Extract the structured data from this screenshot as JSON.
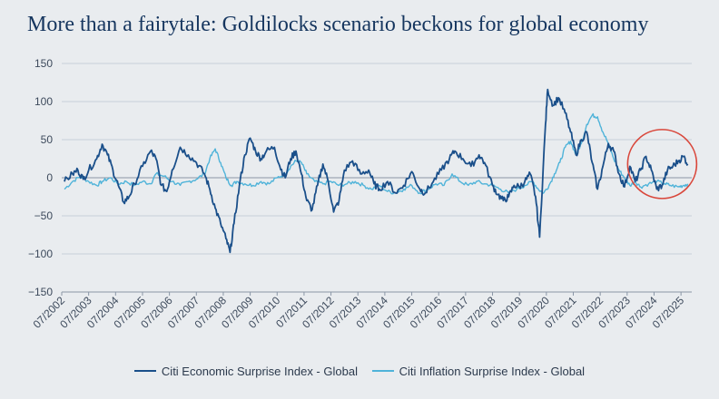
{
  "chart_data": {
    "type": "line",
    "title": "More than a fairytale: Goldilocks scenario beckons for global economy",
    "xlabel": "",
    "ylabel": "",
    "ylim": [
      -150,
      150
    ],
    "yticks": [
      "150",
      "100",
      "50",
      "0",
      "−50",
      "−100",
      "−150"
    ],
    "ytick_values": [
      150,
      100,
      50,
      0,
      -50,
      -100,
      -150
    ],
    "xticks": [
      "07/2002",
      "07/2003",
      "07/2004",
      "07/2005",
      "07/2006",
      "07/2007",
      "07/2008",
      "07/2009",
      "07/2010",
      "07/2011",
      "07/2012",
      "07/2013",
      "07/2014",
      "07/2015",
      "07/2016",
      "07/2017",
      "07/2018",
      "07/2019",
      "07/2020",
      "07/2021",
      "07/2022",
      "07/2023",
      "07/2024",
      "07/2025"
    ],
    "xrange": [
      2002.5,
      2025.9
    ],
    "grid": true,
    "legend_position": "bottom",
    "series": [
      {
        "name": "Citi Economic Surprise Index - Global",
        "color": "#1a4f8a",
        "points": [
          [
            2002.6,
            -5
          ],
          [
            2002.9,
            5
          ],
          [
            2003.1,
            10
          ],
          [
            2003.3,
            -2
          ],
          [
            2003.5,
            10
          ],
          [
            2003.8,
            25
          ],
          [
            2004.0,
            44
          ],
          [
            2004.2,
            30
          ],
          [
            2004.4,
            10
          ],
          [
            2004.6,
            -10
          ],
          [
            2004.8,
            -32
          ],
          [
            2005.0,
            -25
          ],
          [
            2005.2,
            -8
          ],
          [
            2005.5,
            15
          ],
          [
            2005.8,
            35
          ],
          [
            2006.0,
            25
          ],
          [
            2006.2,
            -10
          ],
          [
            2006.4,
            -18
          ],
          [
            2006.6,
            10
          ],
          [
            2006.9,
            40
          ],
          [
            2007.2,
            30
          ],
          [
            2007.5,
            20
          ],
          [
            2007.8,
            5
          ],
          [
            2008.0,
            -15
          ],
          [
            2008.2,
            -40
          ],
          [
            2008.4,
            -60
          ],
          [
            2008.6,
            -80
          ],
          [
            2008.75,
            -98
          ],
          [
            2008.9,
            -60
          ],
          [
            2009.1,
            -10
          ],
          [
            2009.3,
            30
          ],
          [
            2009.5,
            52
          ],
          [
            2009.7,
            35
          ],
          [
            2009.9,
            25
          ],
          [
            2010.1,
            35
          ],
          [
            2010.4,
            40
          ],
          [
            2010.6,
            15
          ],
          [
            2010.8,
            0
          ],
          [
            2011.0,
            25
          ],
          [
            2011.2,
            35
          ],
          [
            2011.4,
            5
          ],
          [
            2011.6,
            -30
          ],
          [
            2011.8,
            -42
          ],
          [
            2012.0,
            -10
          ],
          [
            2012.2,
            18
          ],
          [
            2012.4,
            -5
          ],
          [
            2012.6,
            -45
          ],
          [
            2012.8,
            -30
          ],
          [
            2013.0,
            10
          ],
          [
            2013.3,
            22
          ],
          [
            2013.6,
            5
          ],
          [
            2013.9,
            10
          ],
          [
            2014.1,
            -8
          ],
          [
            2014.3,
            -15
          ],
          [
            2014.6,
            -5
          ],
          [
            2014.9,
            -20
          ],
          [
            2015.2,
            -10
          ],
          [
            2015.5,
            8
          ],
          [
            2015.8,
            -15
          ],
          [
            2016.0,
            -20
          ],
          [
            2016.3,
            -5
          ],
          [
            2016.6,
            10
          ],
          [
            2016.9,
            25
          ],
          [
            2017.1,
            35
          ],
          [
            2017.4,
            25
          ],
          [
            2017.7,
            15
          ],
          [
            2018.0,
            30
          ],
          [
            2018.2,
            20
          ],
          [
            2018.5,
            -10
          ],
          [
            2018.7,
            -22
          ],
          [
            2018.9,
            -30
          ],
          [
            2019.1,
            -25
          ],
          [
            2019.3,
            -10
          ],
          [
            2019.5,
            -12
          ],
          [
            2019.7,
            -5
          ],
          [
            2019.9,
            5
          ],
          [
            2020.1,
            -25
          ],
          [
            2020.25,
            -78
          ],
          [
            2020.45,
            60
          ],
          [
            2020.55,
            116
          ],
          [
            2020.75,
            95
          ],
          [
            2020.95,
            105
          ],
          [
            2021.2,
            85
          ],
          [
            2021.4,
            60
          ],
          [
            2021.6,
            30
          ],
          [
            2021.8,
            50
          ],
          [
            2022.0,
            60
          ],
          [
            2022.2,
            20
          ],
          [
            2022.4,
            -15
          ],
          [
            2022.6,
            15
          ],
          [
            2022.8,
            45
          ],
          [
            2023.0,
            35
          ],
          [
            2023.2,
            5
          ],
          [
            2023.4,
            -12
          ],
          [
            2023.6,
            15
          ],
          [
            2023.8,
            -5
          ],
          [
            2024.0,
            10
          ],
          [
            2024.2,
            28
          ],
          [
            2024.4,
            10
          ],
          [
            2024.6,
            -15
          ],
          [
            2024.8,
            -10
          ],
          [
            2025.0,
            10
          ],
          [
            2025.2,
            15
          ],
          [
            2025.4,
            22
          ],
          [
            2025.6,
            28
          ],
          [
            2025.75,
            18
          ]
        ]
      },
      {
        "name": "Citi Inflation Surprise Index - Global",
        "color": "#4fb3d9",
        "points": [
          [
            2002.6,
            -15
          ],
          [
            2002.9,
            -5
          ],
          [
            2003.2,
            2
          ],
          [
            2003.5,
            -5
          ],
          [
            2003.8,
            -10
          ],
          [
            2004.0,
            -5
          ],
          [
            2004.3,
            0
          ],
          [
            2004.6,
            -8
          ],
          [
            2004.9,
            -5
          ],
          [
            2005.2,
            -10
          ],
          [
            2005.5,
            -5
          ],
          [
            2005.8,
            -8
          ],
          [
            2006.0,
            5
          ],
          [
            2006.3,
            2
          ],
          [
            2006.6,
            -5
          ],
          [
            2006.9,
            -10
          ],
          [
            2007.2,
            -5
          ],
          [
            2007.5,
            -2
          ],
          [
            2007.8,
            5
          ],
          [
            2008.0,
            25
          ],
          [
            2008.2,
            38
          ],
          [
            2008.4,
            20
          ],
          [
            2008.6,
            0
          ],
          [
            2008.8,
            -10
          ],
          [
            2009.0,
            -5
          ],
          [
            2009.3,
            -8
          ],
          [
            2009.6,
            -10
          ],
          [
            2009.9,
            -5
          ],
          [
            2010.2,
            -8
          ],
          [
            2010.5,
            0
          ],
          [
            2010.8,
            5
          ],
          [
            2011.0,
            15
          ],
          [
            2011.2,
            22
          ],
          [
            2011.4,
            20
          ],
          [
            2011.6,
            5
          ],
          [
            2011.9,
            -5
          ],
          [
            2012.2,
            -8
          ],
          [
            2012.5,
            -5
          ],
          [
            2012.8,
            -10
          ],
          [
            2013.1,
            -8
          ],
          [
            2013.4,
            -5
          ],
          [
            2013.7,
            -10
          ],
          [
            2014.0,
            -15
          ],
          [
            2014.3,
            -10
          ],
          [
            2014.6,
            -18
          ],
          [
            2014.9,
            -20
          ],
          [
            2015.2,
            -15
          ],
          [
            2015.5,
            -10
          ],
          [
            2015.8,
            -20
          ],
          [
            2016.1,
            -15
          ],
          [
            2016.4,
            -8
          ],
          [
            2016.7,
            -10
          ],
          [
            2017.0,
            5
          ],
          [
            2017.3,
            -5
          ],
          [
            2017.6,
            -10
          ],
          [
            2017.9,
            -5
          ],
          [
            2018.2,
            -8
          ],
          [
            2018.5,
            -10
          ],
          [
            2018.8,
            -15
          ],
          [
            2019.1,
            -20
          ],
          [
            2019.4,
            -15
          ],
          [
            2019.7,
            -10
          ],
          [
            2020.0,
            -5
          ],
          [
            2020.2,
            -15
          ],
          [
            2020.4,
            -20
          ],
          [
            2020.6,
            -10
          ],
          [
            2020.8,
            5
          ],
          [
            2021.0,
            20
          ],
          [
            2021.2,
            40
          ],
          [
            2021.4,
            48
          ],
          [
            2021.6,
            30
          ],
          [
            2021.8,
            45
          ],
          [
            2022.0,
            70
          ],
          [
            2022.2,
            82
          ],
          [
            2022.4,
            80
          ],
          [
            2022.6,
            60
          ],
          [
            2022.8,
            45
          ],
          [
            2023.0,
            25
          ],
          [
            2023.2,
            10
          ],
          [
            2023.4,
            0
          ],
          [
            2023.6,
            -10
          ],
          [
            2023.8,
            -5
          ],
          [
            2024.0,
            -12
          ],
          [
            2024.3,
            -8
          ],
          [
            2024.6,
            -5
          ],
          [
            2024.9,
            -8
          ],
          [
            2025.1,
            -10
          ],
          [
            2025.4,
            -12
          ],
          [
            2025.6,
            -10
          ],
          [
            2025.75,
            -8
          ]
        ]
      }
    ],
    "annotation": {
      "shape": "circle",
      "center_x": 2024.8,
      "center_y": 18,
      "color": "#d9473b"
    }
  }
}
